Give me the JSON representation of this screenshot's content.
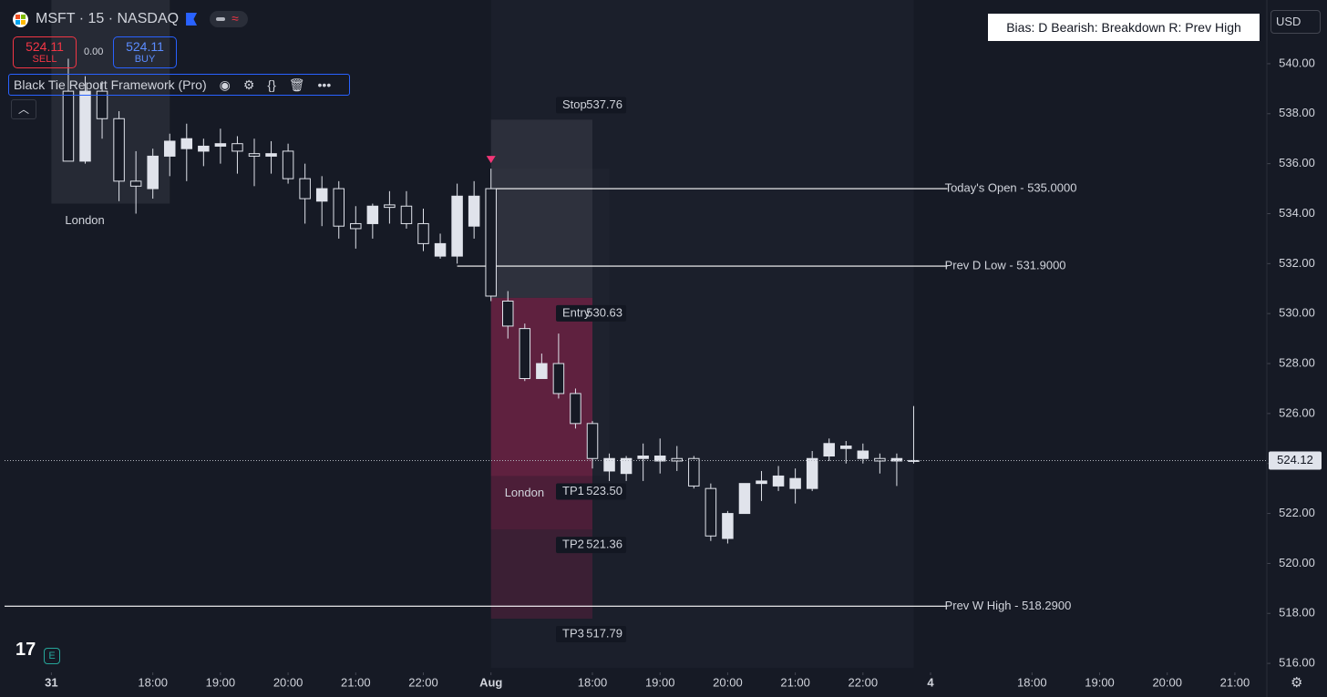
{
  "header": {
    "symbol": "MSFT · 15 · NASDAQ",
    "sell_price": "524.11",
    "sell_label": "SELL",
    "spread": "0.00",
    "buy_price": "524.11",
    "buy_label": "BUY",
    "indicator": "Black Tie Report Framework (Pro)",
    "bias": "Bias: D  Bearish: Breakdown  R: Prev High",
    "currency": "USD"
  },
  "chart_data": {
    "type": "candlestick",
    "x": [
      0,
      1,
      2,
      3,
      4,
      5,
      6,
      7,
      8,
      9,
      10,
      11,
      12,
      13,
      14,
      15,
      16,
      17,
      18,
      19,
      20,
      21,
      22,
      23,
      24,
      25,
      26,
      27,
      28,
      29,
      30,
      31,
      32,
      33,
      34,
      35,
      36,
      37,
      38,
      39,
      40,
      41,
      42,
      43,
      44,
      45,
      46,
      47,
      48,
      49,
      50
    ],
    "open": [
      538.9,
      536.1,
      538.9,
      537.8,
      535.3,
      535.0,
      536.3,
      536.6,
      536.5,
      536.7,
      536.8,
      536.4,
      536.3,
      536.5,
      535.4,
      534.5,
      535.0,
      533.6,
      533.6,
      534.35,
      534.3,
      533.6,
      532.3,
      532.3,
      533.5,
      535.0,
      530.5,
      529.4,
      527.4,
      528.0,
      526.8,
      525.6,
      523.7,
      523.6,
      524.2,
      524.1,
      524.2,
      524.2,
      523.0,
      521.0,
      522.0,
      523.2,
      523.1,
      523.0,
      523.0,
      524.3,
      524.6,
      524.2,
      524.2,
      524.1,
      524.1
    ],
    "high": [
      540.2,
      539.5,
      539.3,
      538.1,
      536.5,
      536.6,
      537.2,
      537.6,
      537.0,
      537.4,
      537.1,
      537.0,
      536.9,
      536.8,
      536.0,
      535.5,
      535.3,
      534.3,
      534.4,
      534.9,
      534.9,
      534.2,
      533.2,
      535.2,
      535.3,
      535.8,
      530.9,
      529.6,
      528.4,
      529.2,
      527.0,
      525.7,
      524.4,
      524.3,
      524.8,
      525.0,
      524.7,
      524.3,
      523.2,
      522.1,
      523.2,
      523.7,
      523.9,
      523.8,
      524.5,
      525.0,
      524.9,
      524.8,
      524.4,
      524.4,
      526.3
    ],
    "low": [
      536.1,
      536.0,
      537.0,
      534.5,
      534.0,
      534.6,
      535.5,
      535.3,
      535.9,
      536.0,
      535.6,
      535.1,
      535.6,
      535.2,
      533.6,
      533.5,
      533.0,
      532.6,
      533.0,
      533.6,
      533.4,
      532.5,
      532.2,
      532.0,
      533.0,
      530.5,
      529.0,
      527.3,
      527.4,
      526.6,
      525.4,
      523.8,
      523.3,
      523.3,
      523.3,
      523.6,
      523.7,
      523.0,
      520.9,
      520.8,
      522.0,
      522.5,
      522.9,
      522.4,
      522.9,
      524.1,
      524.0,
      524.0,
      523.6,
      523.1,
      524.0
    ],
    "close": [
      536.1,
      538.9,
      537.8,
      535.3,
      535.1,
      536.3,
      536.9,
      537.0,
      536.7,
      536.8,
      536.5,
      536.3,
      536.4,
      535.4,
      534.6,
      535.0,
      533.5,
      533.4,
      534.3,
      534.25,
      533.6,
      532.8,
      532.8,
      534.7,
      534.7,
      530.7,
      529.5,
      527.4,
      528.0,
      526.8,
      525.6,
      524.2,
      524.2,
      524.2,
      524.3,
      524.3,
      524.1,
      523.1,
      521.1,
      522.0,
      523.2,
      523.3,
      523.5,
      523.4,
      524.2,
      524.8,
      524.7,
      524.5,
      524.1,
      524.2,
      524.12
    ],
    "up_color": "#e0e3eb",
    "down_color": "#e0e3eb",
    "xlim": [
      -3.77,
      70.89
    ],
    "xticks": [
      {
        "value": -1,
        "label": "31"
      },
      {
        "value": 5,
        "label": "18:00"
      },
      {
        "value": 9,
        "label": "19:00"
      },
      {
        "value": 13,
        "label": "20:00"
      },
      {
        "value": 17,
        "label": "21:00"
      },
      {
        "value": 21,
        "label": "22:00"
      },
      {
        "value": 25,
        "label": "Aug"
      },
      {
        "value": 31,
        "label": "18:00"
      },
      {
        "value": 35,
        "label": "19:00"
      },
      {
        "value": 39,
        "label": "20:00"
      },
      {
        "value": 43,
        "label": "21:00"
      },
      {
        "value": 47,
        "label": "22:00"
      },
      {
        "value": 51,
        "label": "4"
      },
      {
        "value": 57,
        "label": "18:00"
      },
      {
        "value": 61,
        "label": "19:00"
      },
      {
        "value": 65,
        "label": "20:00"
      },
      {
        "value": 69,
        "label": "21:00"
      }
    ],
    "ylim": [
      515.64,
      542.55
    ],
    "yticks": [
      {
        "value": 516,
        "label": "516.00"
      },
      {
        "value": 518,
        "label": "518.00"
      },
      {
        "value": 520,
        "label": "520.00"
      },
      {
        "value": 522,
        "label": "522.00"
      },
      {
        "value": 524,
        "label": "524.00"
      },
      {
        "value": 526,
        "label": "526.00"
      },
      {
        "value": 528,
        "label": "528.00"
      },
      {
        "value": 530,
        "label": "530.00"
      },
      {
        "value": 532,
        "label": "532.00"
      },
      {
        "value": 534,
        "label": "534.00"
      },
      {
        "value": 536,
        "label": "536.00"
      },
      {
        "value": 538,
        "label": "538.00"
      },
      {
        "value": 540,
        "label": "540.00"
      }
    ],
    "last_price": 524.12,
    "sessions": [
      {
        "name": "London",
        "x": [
          -1,
          6
        ],
        "top": 542.55,
        "bottom": 534.4
      },
      {
        "name": "London",
        "x": [
          25,
          32
        ],
        "top": 535.8,
        "bottom": 523.5
      }
    ],
    "levels": [
      {
        "label": "Today's Open - 535.0000",
        "value": 535,
        "x": [
          25,
          52
        ]
      },
      {
        "label": "Prev D Low  - 531.9000",
        "value": 531.9,
        "x": [
          23,
          52
        ]
      },
      {
        "label": "Prev W High - 518.2900",
        "value": 518.29,
        "x": [
          -3.77,
          52
        ]
      }
    ],
    "trade": {
      "x": [
        25,
        31
      ],
      "levels": [
        {
          "name": "Stop",
          "value": 537.76
        },
        {
          "name": "Entry",
          "value": 530.63
        },
        {
          "name": "TP1",
          "value": 523.5,
          "value_label": "523.50"
        },
        {
          "name": "TP2",
          "value": 521.36
        },
        {
          "name": "TP3",
          "value": 517.79
        }
      ]
    }
  }
}
